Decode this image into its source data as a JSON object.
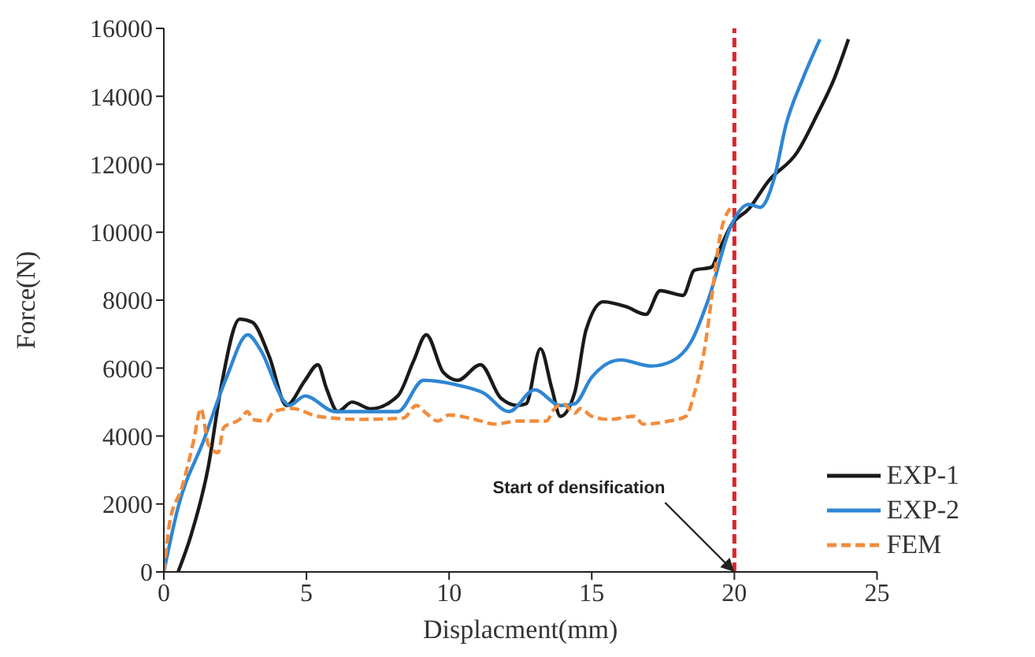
{
  "chart_data": {
    "type": "line",
    "xlabel": "Displacment(mm)",
    "ylabel": "Force(N)",
    "xlim": [
      0,
      25
    ],
    "xticks": [
      0,
      5,
      10,
      15,
      20,
      25
    ],
    "ylim": [
      0,
      16000
    ],
    "yticks": [
      0,
      2000,
      4000,
      6000,
      8000,
      10000,
      12000,
      14000,
      16000
    ],
    "legend": "bottom right",
    "marker": "none",
    "series": [
      {
        "name": "EXP-1",
        "color": "#1a1a1a",
        "line_style": "solid",
        "x": [
          0.5,
          0.96,
          1.56,
          2.0,
          2.66,
          3.1,
          3.7,
          4.3,
          4.95,
          5.4,
          5.7,
          6.1,
          6.6,
          7.25,
          8.2,
          8.75,
          9.2,
          9.8,
          10.3,
          11.1,
          11.8,
          12.4,
          12.7,
          13.2,
          13.6,
          13.9,
          14.4,
          14.8,
          15.4,
          16.2,
          16.9,
          17.4,
          18.2,
          18.6,
          19.2,
          19.45,
          19.9,
          20.5,
          21.2,
          22.2,
          22.9,
          23.5,
          24.0
        ],
        "values": [
          0,
          1100,
          3100,
          5400,
          7440,
          7350,
          6330,
          4900,
          5640,
          6100,
          5400,
          4720,
          5000,
          4800,
          5180,
          6200,
          6980,
          5870,
          5640,
          6100,
          5130,
          4900,
          4950,
          6570,
          5400,
          4580,
          5270,
          7120,
          7950,
          7810,
          7580,
          8280,
          8140,
          8880,
          8970,
          9430,
          10220,
          10680,
          11510,
          12350,
          13460,
          14520,
          15680
        ]
      },
      {
        "name": "EXP-2",
        "color": "#2e86d4",
        "line_style": "solid",
        "x": [
          0,
          0.5,
          1.4,
          2.2,
          2.94,
          3.4,
          4.2,
          4.4,
          4.95,
          6.0,
          8.2,
          9.1,
          10.3,
          11.2,
          12.1,
          13.0,
          13.9,
          14.4,
          15.0,
          16.0,
          17.1,
          17.8,
          18.5,
          19.1,
          19.9,
          20.5,
          20.9,
          21.4,
          21.8,
          22.4,
          23.0
        ],
        "values": [
          0,
          1900,
          3880,
          5730,
          6980,
          6520,
          5040,
          4900,
          5180,
          4720,
          4720,
          5640,
          5500,
          5270,
          4720,
          5360,
          4900,
          4950,
          5730,
          6240,
          6060,
          6200,
          6800,
          8050,
          10220,
          10820,
          10730,
          11600,
          13130,
          14520,
          15680
        ]
      },
      {
        "name": "FEM",
        "color": "#f28c3c",
        "line_style": "dashed",
        "x": [
          0,
          0.2,
          0.64,
          1.05,
          1.3,
          1.56,
          1.9,
          2.1,
          2.66,
          2.94,
          3.1,
          3.6,
          3.85,
          4.5,
          5.4,
          6.9,
          8.4,
          8.85,
          9.2,
          9.6,
          10.0,
          10.9,
          11.6,
          12.4,
          13.4,
          13.7,
          14.0,
          14.4,
          14.6,
          15.0,
          15.6,
          16.5,
          16.8,
          17.7,
          18.3,
          18.6,
          19.0,
          19.2,
          19.5,
          19.85
        ],
        "values": [
          0,
          1430,
          2500,
          3880,
          4810,
          3750,
          3510,
          4250,
          4490,
          4720,
          4490,
          4440,
          4720,
          4810,
          4580,
          4490,
          4530,
          4900,
          4670,
          4440,
          4620,
          4490,
          4350,
          4440,
          4440,
          4810,
          4950,
          4670,
          4810,
          4580,
          4490,
          4580,
          4350,
          4440,
          4580,
          5270,
          6800,
          8050,
          9900,
          10700
        ]
      }
    ],
    "ref_lines": [
      {
        "axis": "x",
        "value": 20,
        "color": "#d9262b",
        "line_style": "dashed"
      }
    ],
    "annotations": [
      {
        "text": "Start of densification",
        "x": 20,
        "y": 0
      }
    ]
  }
}
